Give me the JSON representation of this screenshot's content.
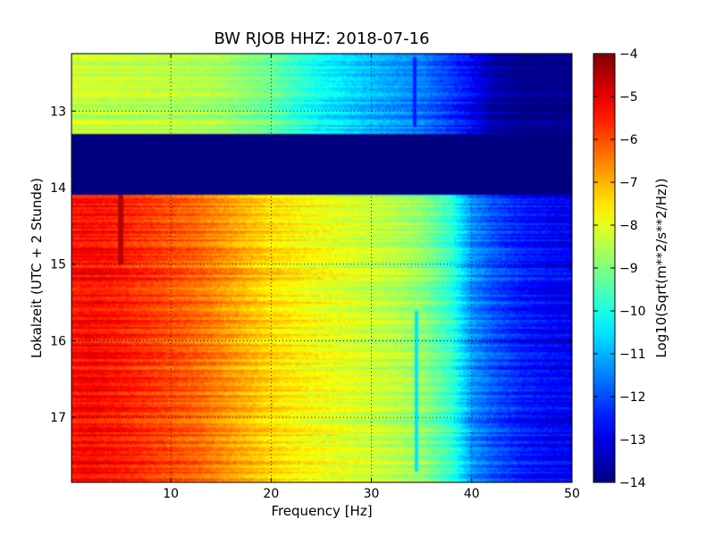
{
  "chart_data": {
    "type": "heatmap",
    "title": "BW RJOB HHZ: 2018-07-16",
    "xlabel": "Frequency [Hz]",
    "ylabel": "Lokalzeit (UTC + 2 Stunde)",
    "xlim": [
      0.1,
      50
    ],
    "ylim": [
      12.25,
      17.85
    ],
    "y_inverted": true,
    "grid": true,
    "grid_style": "dotted",
    "x_ticks": [
      10,
      20,
      30,
      40,
      50
    ],
    "x_tick_labels": [
      "10",
      "20",
      "30",
      "40",
      "50"
    ],
    "y_ticks": [
      13,
      14,
      15,
      16,
      17
    ],
    "y_tick_labels": [
      "13",
      "14",
      "15",
      "16",
      "17"
    ],
    "colorbar": {
      "label": "Log10(Sqrt(m**2/s**2/Hz))",
      "min": -14,
      "max": -4,
      "ticks": [
        -4,
        -5,
        -6,
        -7,
        -8,
        -9,
        -10,
        -11,
        -12,
        -13,
        -14
      ],
      "tick_labels": [
        "−4",
        "−5",
        "−6",
        "−7",
        "−8",
        "−9",
        "−10",
        "−11",
        "−12",
        "−13",
        "−14"
      ],
      "colormap": "jet"
    },
    "data_gap": {
      "from_hour": 13.3,
      "to_hour": 14.1,
      "value": -14
    },
    "spectrum_before_gap": {
      "hours": [
        12.25,
        13.3
      ],
      "freq_hz": [
        0,
        5,
        10,
        15,
        20,
        25,
        30,
        35,
        38,
        40,
        42,
        45,
        50
      ],
      "log10_amplitude": [
        -8.3,
        -8.4,
        -8.5,
        -8.7,
        -9.3,
        -10.3,
        -11.0,
        -11.6,
        -12.3,
        -12.8,
        -13.6,
        -14,
        -14
      ]
    },
    "spectrum_after_gap": {
      "hours": [
        14.1,
        17.85
      ],
      "freq_hz": [
        0,
        2,
        5,
        8,
        10,
        13,
        16,
        20,
        24,
        28,
        32,
        35,
        38,
        40,
        42,
        45,
        48,
        50
      ],
      "log10_amplitude": [
        -5.4,
        -5.3,
        -5.5,
        -5.8,
        -6.0,
        -6.3,
        -6.8,
        -7.4,
        -7.8,
        -8.1,
        -8.4,
        -8.8,
        -9.8,
        -11.3,
        -11.9,
        -12.5,
        -12.8,
        -12.9
      ]
    },
    "narrow_features": [
      {
        "freq_hz": 5.0,
        "from_hour": 14.1,
        "to_hour": 15.0,
        "value": -4.5
      },
      {
        "freq_hz": 34.5,
        "from_hour": 15.6,
        "to_hour": 17.7,
        "value": -10.5
      },
      {
        "freq_hz": 34.3,
        "from_hour": 12.3,
        "to_hour": 13.2,
        "value": -12.5
      }
    ],
    "background_color": "#ffffff"
  }
}
